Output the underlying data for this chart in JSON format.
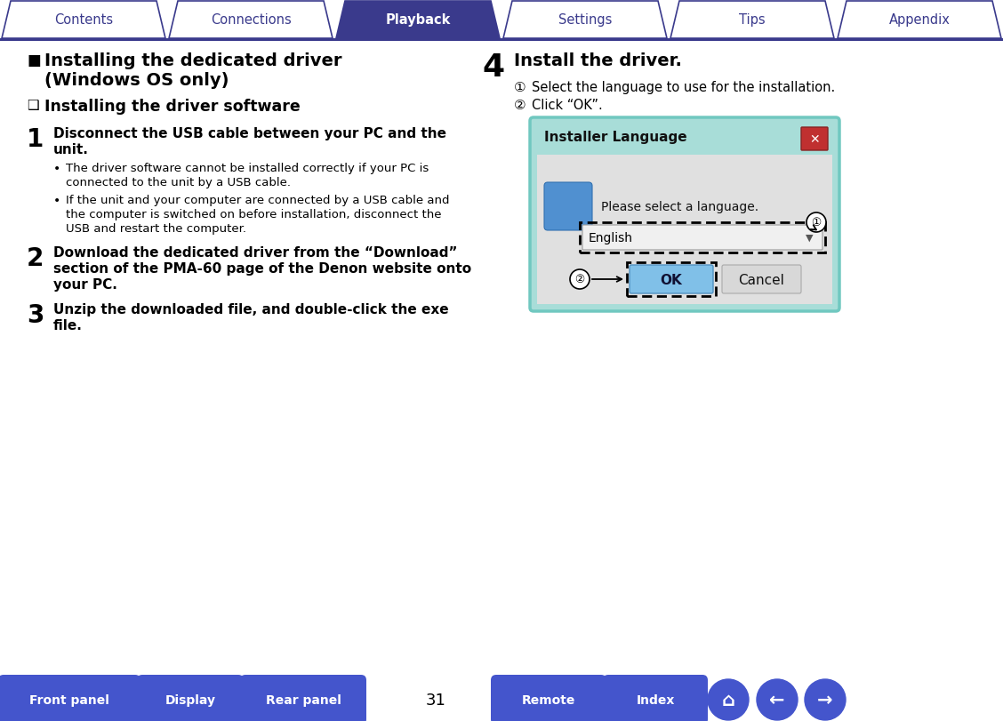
{
  "tab_labels": [
    "Contents",
    "Connections",
    "Playback",
    "Settings",
    "Tips",
    "Appendix"
  ],
  "active_tab": 2,
  "tab_color_active": "#3a3a8c",
  "tab_color_inactive": "#ffffff",
  "tab_text_color_active": "#ffffff",
  "tab_text_color_inactive": "#3a3a8c",
  "tab_border_color": "#3a3a8c",
  "section_title_line1": "Installing the dedicated driver",
  "section_title_line2": "(Windows OS only)",
  "subsection_title": "Installing the driver software",
  "step1_title_line1": "Disconnect the USB cable between your PC and the",
  "step1_title_line2": "unit.",
  "step1_bullet1_line1": "The driver software cannot be installed correctly if your PC is",
  "step1_bullet1_line2": "connected to the unit by a USB cable.",
  "step1_bullet2_line1": "If the unit and your computer are connected by a USB cable and",
  "step1_bullet2_line2": "the computer is switched on before installation, disconnect the",
  "step1_bullet2_line3": "USB and restart the computer.",
  "step2_line1": "Download the dedicated driver from the “Download”",
  "step2_line2": "section of the PMA-60 page of the Denon website onto",
  "step2_line3": "your PC.",
  "step3_line1": "Unzip the downloaded file, and double-click the exe",
  "step3_line2": "file.",
  "step4_title": "Install the driver.",
  "step4_sub1": " Select the language to use for the installation.",
  "step4_sub2": " Click “OK”.",
  "page_number": "31",
  "bottom_buttons": [
    "Front panel",
    "Display",
    "Rear panel",
    "Remote",
    "Index"
  ],
  "btn_color": "#4455cc",
  "bg_color": "#ffffff",
  "dialog_teal_border": "#70c8c0",
  "dialog_teal_bg": "#a8ddd8",
  "dialog_body_bg": "#e0e0e0",
  "dialog_close_red": "#c03030",
  "dialog_ok_blue": "#80c0e8",
  "dialog_cancel_bg": "#d8d8d8",
  "dialog_usb_blue": "#5090d0"
}
